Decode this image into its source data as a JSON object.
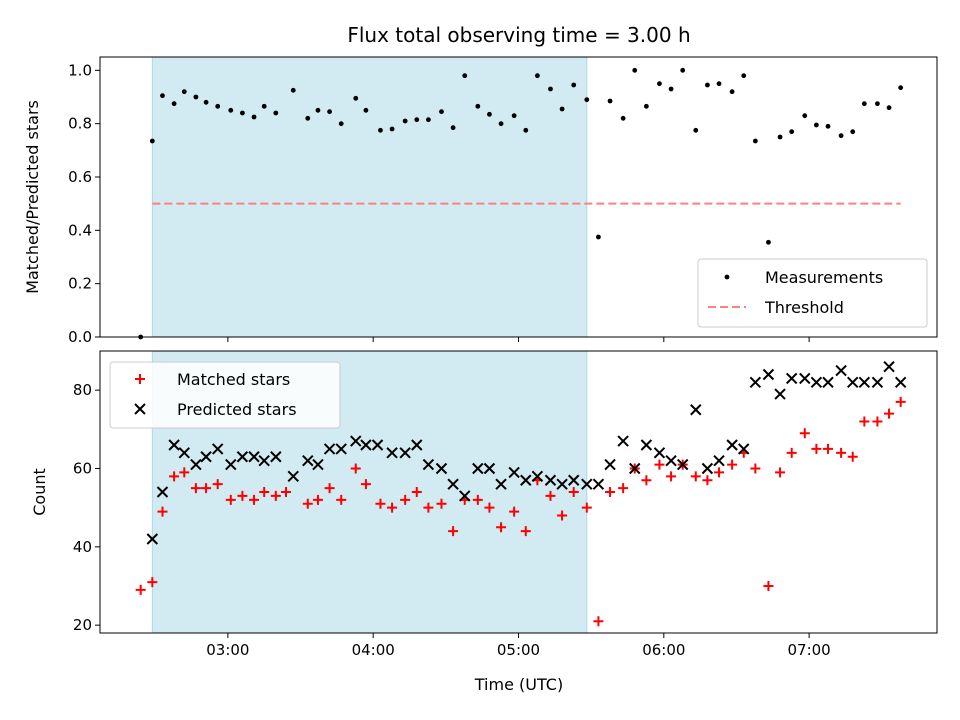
{
  "chart_data": {
    "type": "scatter",
    "title": "Flux total observing time = 3.00 h",
    "xlabel": "Time (UTC)",
    "x_ticks": [
      "03:00",
      "04:00",
      "05:00",
      "06:00",
      "07:00"
    ],
    "x_range_hours": [
      2.12,
      7.88
    ],
    "shaded_span_hours": [
      2.48,
      5.47
    ],
    "shade_color": "#add8e6",
    "panels": [
      {
        "ylabel": "Matched/Predicted stars",
        "ylim": [
          0.0,
          1.05
        ],
        "y_ticks": [
          0.0,
          0.2,
          0.4,
          0.6,
          0.8,
          1.0
        ],
        "threshold": {
          "name": "Threshold",
          "value": 0.5,
          "x_range_hours": [
            2.48,
            7.63
          ],
          "color": "#ff8080"
        },
        "series": [
          {
            "name": "Measurements",
            "marker": "dot",
            "color": "#000000",
            "points": [
              [
                2.4,
                0.0
              ],
              [
                2.48,
                0.735
              ],
              [
                2.55,
                0.905
              ],
              [
                2.63,
                0.875
              ],
              [
                2.7,
                0.92
              ],
              [
                2.78,
                0.9
              ],
              [
                2.85,
                0.88
              ],
              [
                2.93,
                0.865
              ],
              [
                3.02,
                0.85
              ],
              [
                3.1,
                0.84
              ],
              [
                3.18,
                0.825
              ],
              [
                3.25,
                0.865
              ],
              [
                3.33,
                0.84
              ],
              [
                3.45,
                0.925
              ],
              [
                3.55,
                0.82
              ],
              [
                3.62,
                0.85
              ],
              [
                3.7,
                0.845
              ],
              [
                3.78,
                0.8
              ],
              [
                3.88,
                0.895
              ],
              [
                3.95,
                0.85
              ],
              [
                4.05,
                0.775
              ],
              [
                4.13,
                0.78
              ],
              [
                4.22,
                0.81
              ],
              [
                4.3,
                0.815
              ],
              [
                4.38,
                0.815
              ],
              [
                4.47,
                0.845
              ],
              [
                4.55,
                0.785
              ],
              [
                4.63,
                0.98
              ],
              [
                4.72,
                0.865
              ],
              [
                4.8,
                0.835
              ],
              [
                4.88,
                0.8
              ],
              [
                4.97,
                0.83
              ],
              [
                5.05,
                0.775
              ],
              [
                5.13,
                0.98
              ],
              [
                5.22,
                0.93
              ],
              [
                5.3,
                0.855
              ],
              [
                5.38,
                0.945
              ],
              [
                5.47,
                0.89
              ],
              [
                5.55,
                0.375
              ],
              [
                5.63,
                0.885
              ],
              [
                5.72,
                0.82
              ],
              [
                5.8,
                1.0
              ],
              [
                5.88,
                0.865
              ],
              [
                5.97,
                0.95
              ],
              [
                6.05,
                0.93
              ],
              [
                6.13,
                1.0
              ],
              [
                6.22,
                0.775
              ],
              [
                6.3,
                0.945
              ],
              [
                6.38,
                0.95
              ],
              [
                6.47,
                0.92
              ],
              [
                6.55,
                0.98
              ],
              [
                6.63,
                0.735
              ],
              [
                6.72,
                0.355
              ],
              [
                6.8,
                0.75
              ],
              [
                6.88,
                0.77
              ],
              [
                6.97,
                0.83
              ],
              [
                7.05,
                0.795
              ],
              [
                7.13,
                0.79
              ],
              [
                7.22,
                0.755
              ],
              [
                7.3,
                0.77
              ],
              [
                7.38,
                0.875
              ],
              [
                7.47,
                0.875
              ],
              [
                7.55,
                0.86
              ],
              [
                7.63,
                0.935
              ]
            ]
          }
        ],
        "legend": {
          "placement": "lower-right",
          "entries": [
            "Measurements",
            "Threshold"
          ]
        }
      },
      {
        "ylabel": "Count",
        "ylim": [
          18,
          90
        ],
        "y_ticks": [
          20,
          40,
          60,
          80
        ],
        "series": [
          {
            "name": "Matched stars",
            "marker": "plus",
            "color": "#ff0000",
            "points": [
              [
                2.4,
                29
              ],
              [
                2.48,
                31
              ],
              [
                2.55,
                49
              ],
              [
                2.63,
                58
              ],
              [
                2.7,
                59
              ],
              [
                2.78,
                55
              ],
              [
                2.85,
                55
              ],
              [
                2.93,
                56
              ],
              [
                3.02,
                52
              ],
              [
                3.1,
                53
              ],
              [
                3.18,
                52
              ],
              [
                3.25,
                54
              ],
              [
                3.33,
                53
              ],
              [
                3.4,
                54
              ],
              [
                3.55,
                51
              ],
              [
                3.62,
                52
              ],
              [
                3.7,
                55
              ],
              [
                3.78,
                52
              ],
              [
                3.88,
                60
              ],
              [
                3.95,
                56
              ],
              [
                4.05,
                51
              ],
              [
                4.13,
                50
              ],
              [
                4.22,
                52
              ],
              [
                4.3,
                54
              ],
              [
                4.38,
                50
              ],
              [
                4.47,
                51
              ],
              [
                4.55,
                44
              ],
              [
                4.63,
                52
              ],
              [
                4.72,
                52
              ],
              [
                4.8,
                50
              ],
              [
                4.88,
                45
              ],
              [
                4.97,
                49
              ],
              [
                5.05,
                44
              ],
              [
                5.13,
                57
              ],
              [
                5.22,
                53
              ],
              [
                5.3,
                48
              ],
              [
                5.38,
                54
              ],
              [
                5.47,
                50
              ],
              [
                5.55,
                21
              ],
              [
                5.63,
                54
              ],
              [
                5.72,
                55
              ],
              [
                5.8,
                60
              ],
              [
                5.88,
                57
              ],
              [
                5.97,
                61
              ],
              [
                6.05,
                58
              ],
              [
                6.13,
                61
              ],
              [
                6.22,
                58
              ],
              [
                6.3,
                57
              ],
              [
                6.38,
                59
              ],
              [
                6.47,
                61
              ],
              [
                6.55,
                64
              ],
              [
                6.63,
                60
              ],
              [
                6.72,
                30
              ],
              [
                6.8,
                59
              ],
              [
                6.88,
                64
              ],
              [
                6.97,
                69
              ],
              [
                7.05,
                65
              ],
              [
                7.13,
                65
              ],
              [
                7.22,
                64
              ],
              [
                7.3,
                63
              ],
              [
                7.38,
                72
              ],
              [
                7.47,
                72
              ],
              [
                7.55,
                74
              ],
              [
                7.63,
                77
              ]
            ]
          },
          {
            "name": "Predicted stars",
            "marker": "x",
            "color": "#000000",
            "points": [
              [
                2.48,
                42
              ],
              [
                2.55,
                54
              ],
              [
                2.63,
                66
              ],
              [
                2.7,
                64
              ],
              [
                2.78,
                61
              ],
              [
                2.85,
                63
              ],
              [
                2.93,
                65
              ],
              [
                3.02,
                61
              ],
              [
                3.1,
                63
              ],
              [
                3.18,
                63
              ],
              [
                3.25,
                62
              ],
              [
                3.33,
                63
              ],
              [
                3.45,
                58
              ],
              [
                3.55,
                62
              ],
              [
                3.62,
                61
              ],
              [
                3.7,
                65
              ],
              [
                3.78,
                65
              ],
              [
                3.88,
                67
              ],
              [
                3.95,
                66
              ],
              [
                4.03,
                66
              ],
              [
                4.13,
                64
              ],
              [
                4.22,
                64
              ],
              [
                4.3,
                66
              ],
              [
                4.38,
                61
              ],
              [
                4.47,
                60
              ],
              [
                4.55,
                56
              ],
              [
                4.63,
                53
              ],
              [
                4.72,
                60
              ],
              [
                4.8,
                60
              ],
              [
                4.88,
                56
              ],
              [
                4.97,
                59
              ],
              [
                5.05,
                57
              ],
              [
                5.13,
                58
              ],
              [
                5.22,
                57
              ],
              [
                5.3,
                56
              ],
              [
                5.38,
                57
              ],
              [
                5.47,
                56
              ],
              [
                5.55,
                56
              ],
              [
                5.63,
                61
              ],
              [
                5.72,
                67
              ],
              [
                5.8,
                60
              ],
              [
                5.88,
                66
              ],
              [
                5.97,
                64
              ],
              [
                6.05,
                62
              ],
              [
                6.13,
                61
              ],
              [
                6.22,
                75
              ],
              [
                6.3,
                60
              ],
              [
                6.38,
                62
              ],
              [
                6.47,
                66
              ],
              [
                6.55,
                65
              ],
              [
                6.63,
                82
              ],
              [
                6.72,
                84
              ],
              [
                6.8,
                79
              ],
              [
                6.88,
                83
              ],
              [
                6.97,
                83
              ],
              [
                7.05,
                82
              ],
              [
                7.13,
                82
              ],
              [
                7.22,
                85
              ],
              [
                7.3,
                82
              ],
              [
                7.38,
                82
              ],
              [
                7.47,
                82
              ],
              [
                7.55,
                86
              ],
              [
                7.63,
                82
              ]
            ]
          }
        ],
        "legend": {
          "placement": "upper-left",
          "entries": [
            "Matched stars",
            "Predicted stars"
          ]
        }
      }
    ]
  }
}
